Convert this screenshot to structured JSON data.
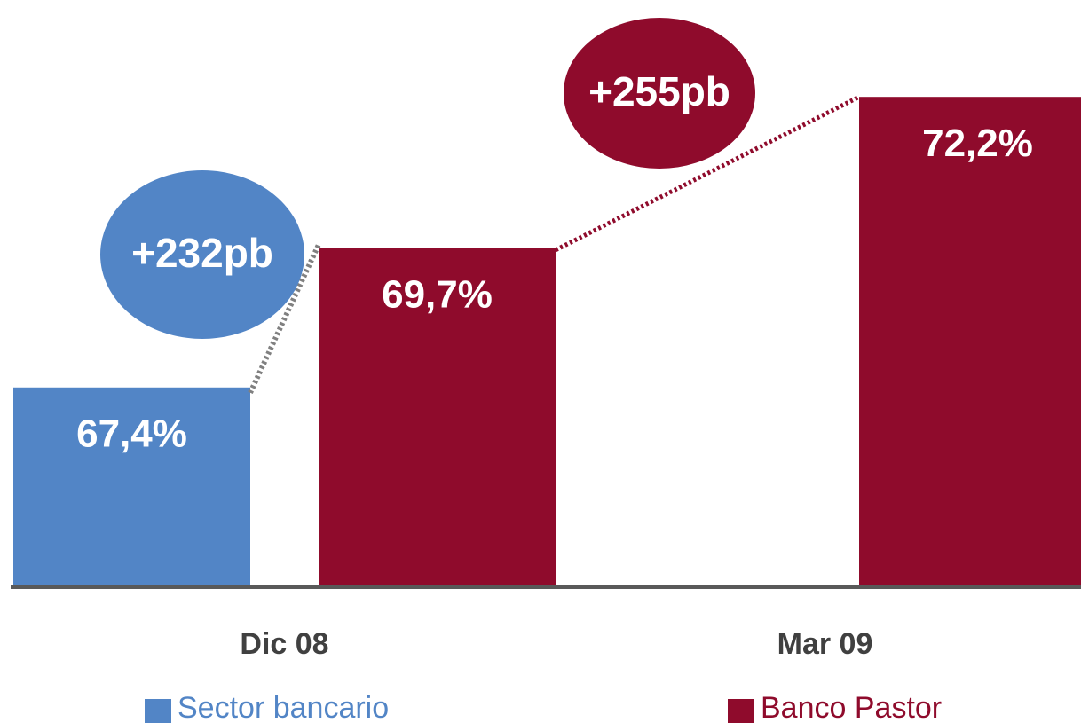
{
  "chart_data": {
    "type": "bar",
    "categories": [
      "Dic 08",
      "Mar 09"
    ],
    "series": [
      {
        "name": "Sector bancario",
        "color": "#5285c6",
        "values": [
          67.4,
          null
        ],
        "value_labels": [
          "67,4%",
          null
        ]
      },
      {
        "name": "Banco Pastor",
        "color": "#8f0b2c",
        "values": [
          69.7,
          72.2
        ],
        "value_labels": [
          "69,7%",
          "72,2%"
        ]
      }
    ],
    "ylim": [
      64.1,
      73.8
    ],
    "annotations": [
      "+232pb",
      "+255pb"
    ]
  }
}
